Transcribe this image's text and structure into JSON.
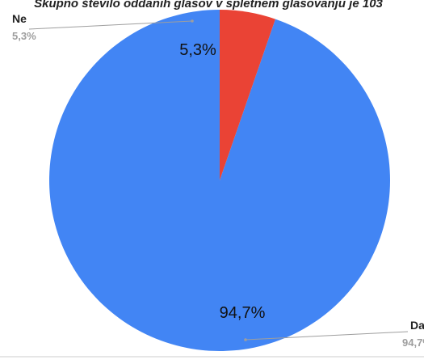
{
  "chart_data": {
    "type": "pie",
    "title": "Skupno število oddanih glasov v spletnem glasovanju je 103",
    "slices": [
      {
        "name": "Da",
        "value": 94.7,
        "label": "94,7%",
        "color": "#4285f4"
      },
      {
        "name": "Ne",
        "value": 5.3,
        "label": "5,3%",
        "color": "#ea4335"
      }
    ],
    "start_angle_deg": 0,
    "direction": "counterclockwise",
    "legend": "callouts"
  }
}
